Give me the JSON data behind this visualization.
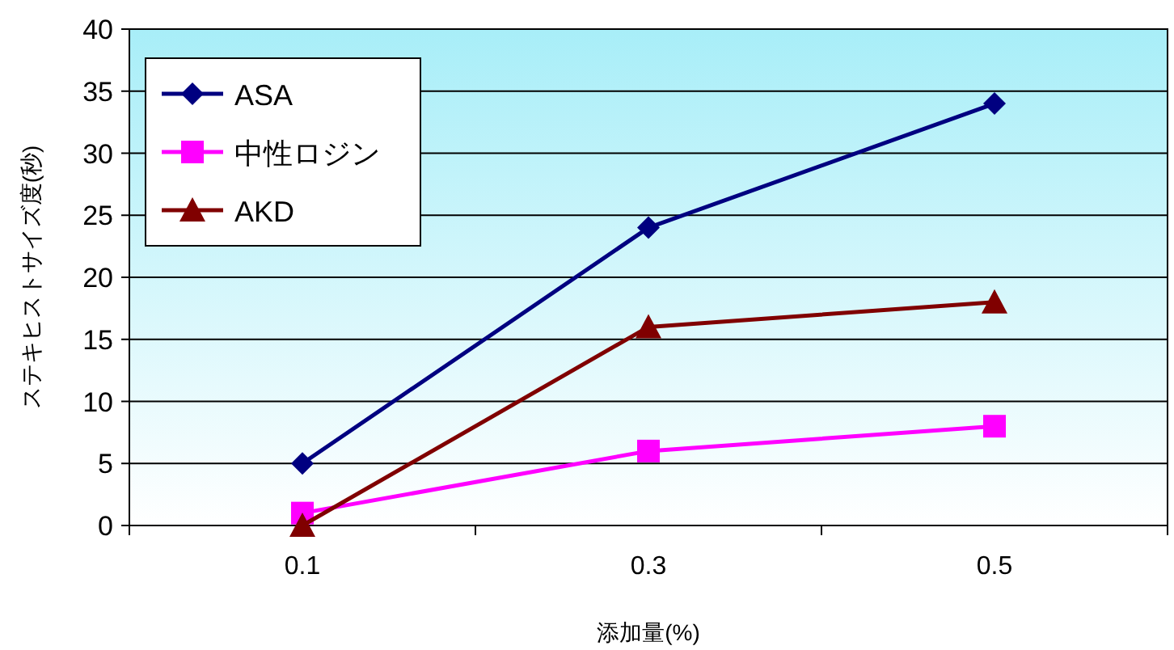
{
  "chart_data": {
    "type": "line",
    "xlabel": "添加量(%)",
    "ylabel": "ステキヒストサイズ度(秒)",
    "categories": [
      "0.1",
      "0.3",
      "0.5"
    ],
    "ylim": [
      0,
      40
    ],
    "yticks": [
      0,
      5,
      10,
      15,
      20,
      25,
      30,
      35,
      40
    ],
    "grid": "y",
    "legend": "top left",
    "series": [
      {
        "name": "ASA",
        "color": "#000080",
        "marker": "diamond",
        "values": [
          5,
          24,
          34
        ]
      },
      {
        "name": "中性ロジン",
        "color": "#ff00ff",
        "marker": "square",
        "values": [
          1,
          6,
          8
        ]
      },
      {
        "name": "AKD",
        "color": "#800000",
        "marker": "triangle",
        "values": [
          0,
          16,
          18
        ]
      }
    ]
  }
}
